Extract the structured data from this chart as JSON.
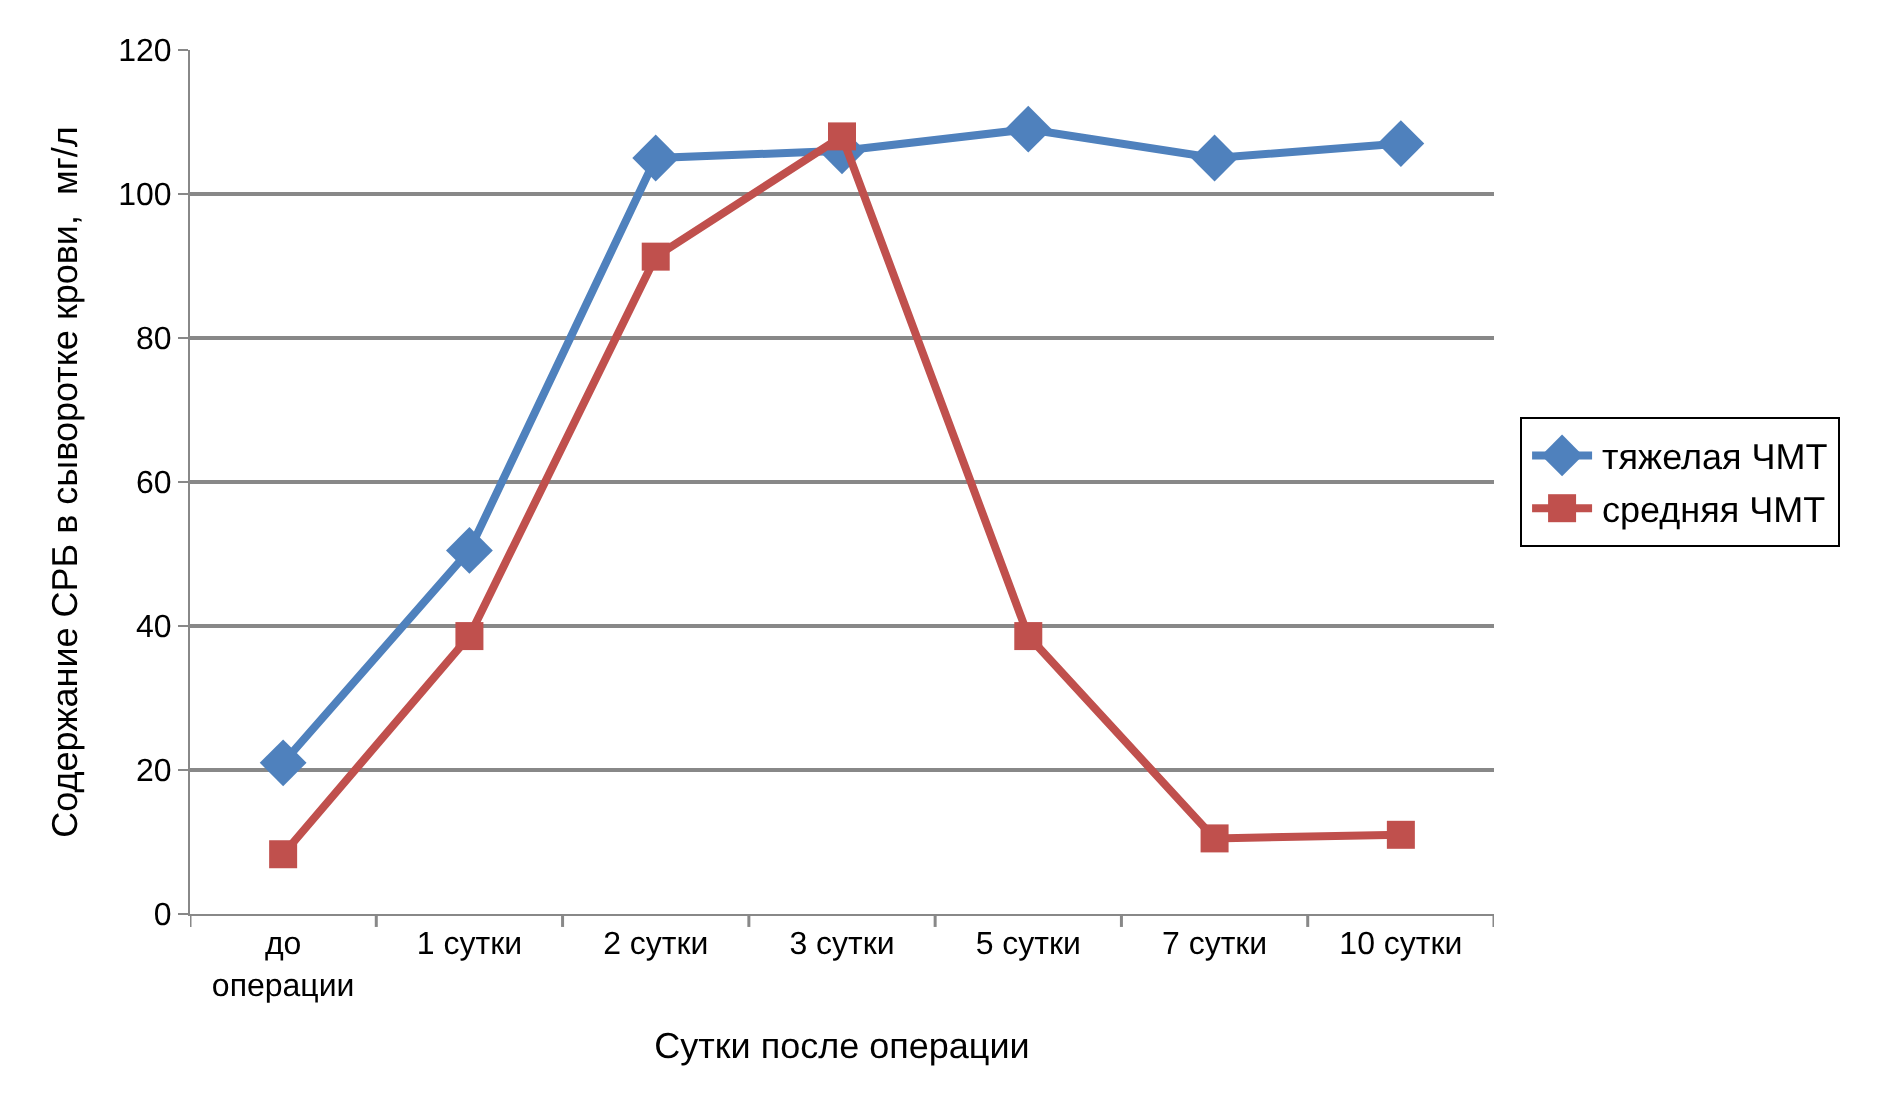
{
  "chart_data": {
    "type": "line",
    "xlabel": "Сутки после операции",
    "ylabel": "Содержание СРБ в сыворотке крови,  мг/л",
    "categories": [
      "до\nоперации",
      "1 сутки",
      "2 сутки",
      "3 сутки",
      "5 сутки",
      "7 сутки",
      "10 сутки"
    ],
    "series": [
      {
        "name": "тяжелая ЧМТ",
        "color": "#4f81bd",
        "marker": "diamond",
        "values": [
          21,
          50.5,
          105,
          106,
          109,
          105,
          107
        ]
      },
      {
        "name": "средняя ЧМТ",
        "color": "#c0504d",
        "marker": "square",
        "values": [
          8.3,
          38.6,
          91.3,
          108,
          38.6,
          10.5,
          11
        ]
      }
    ],
    "ylim": [
      0,
      120
    ],
    "yticks": [
      0,
      20,
      40,
      60,
      80,
      100,
      120
    ],
    "grid": "y",
    "legend": "right",
    "line_style": "solid"
  }
}
